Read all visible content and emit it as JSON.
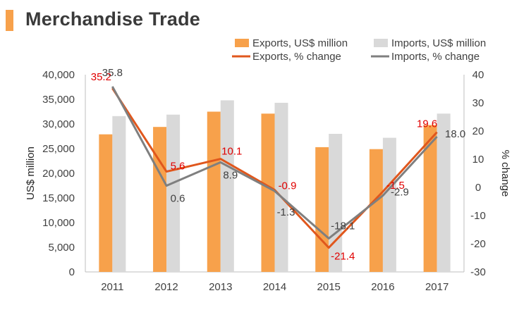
{
  "header": {
    "title": "Merchandise Trade"
  },
  "colors": {
    "title_accent": "#f7a14b",
    "exports_bar": "#f7a14b",
    "imports_bar": "#d9d9d9",
    "exports_line": "#e0571d",
    "imports_line": "#7f7f7f",
    "exports_label": "#e00000",
    "imports_label": "#404040",
    "axis": "#bfbfbf",
    "tick_text": "#404040"
  },
  "chart_data": {
    "type": "bar",
    "categories": [
      "2011",
      "2012",
      "2013",
      "2014",
      "2015",
      "2016",
      "2017"
    ],
    "series": [
      {
        "name": "Exports, US$ million",
        "type": "bar",
        "axis": "left",
        "values": [
          27900,
          29400,
          32500,
          32100,
          25300,
          24900,
          29800
        ]
      },
      {
        "name": "Imports, US$ million",
        "type": "bar",
        "axis": "right-unused",
        "values": [
          31600,
          31900,
          34800,
          34300,
          28000,
          27200,
          32100
        ]
      },
      {
        "name": "Exports, % change",
        "type": "line",
        "axis": "right",
        "values": [
          35.2,
          5.6,
          10.1,
          -0.9,
          -21.4,
          -1.5,
          19.6
        ],
        "labels": [
          "35.2",
          "5.6",
          "10.1",
          "-0.9",
          "-21.4",
          "-1.5",
          "19.6"
        ]
      },
      {
        "name": "Imports, % change",
        "type": "line",
        "axis": "right",
        "values": [
          35.8,
          0.6,
          8.9,
          -1.3,
          -18.1,
          -2.9,
          18.0
        ],
        "labels": [
          "35.8",
          "0.6",
          "8.9",
          "-1.3",
          "-18.1",
          "-2.9",
          "18.0"
        ]
      }
    ],
    "ylabel": "US$ million",
    "ylim": [
      0,
      40000
    ],
    "yticks": [
      "0",
      "5,000",
      "10,000",
      "15,000",
      "20,000",
      "25,000",
      "30,000",
      "35,000",
      "40,000"
    ],
    "y2label": "% change",
    "y2lim": [
      -30,
      40
    ],
    "y2ticks": [
      "-30",
      "-20",
      "-10",
      "0",
      "10",
      "20",
      "30",
      "40"
    ],
    "grid": false,
    "legend": "top-right"
  }
}
